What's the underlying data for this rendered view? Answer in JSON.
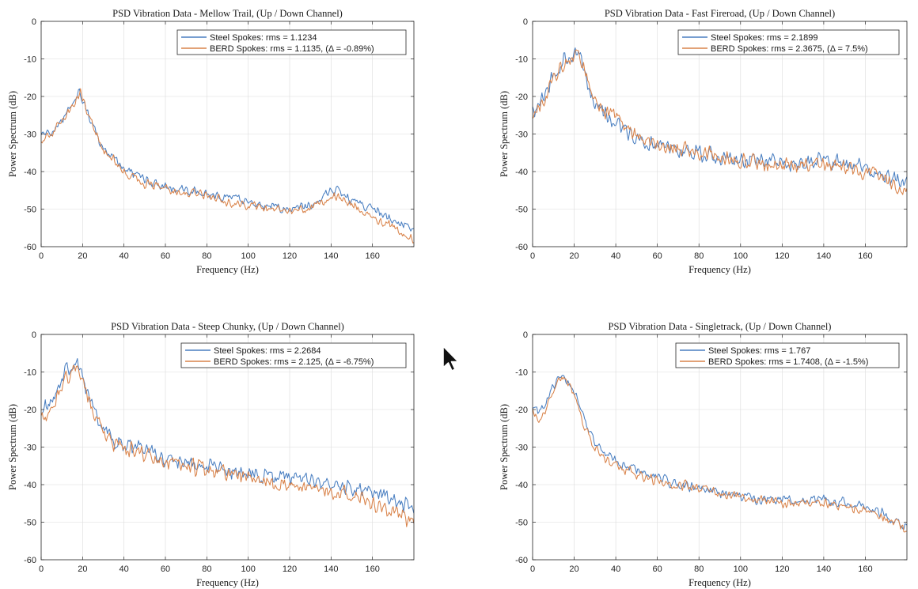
{
  "chart_data": [
    {
      "type": "line",
      "title": "PSD Vibration Data - Mellow Trail, (Up / Down Channel)",
      "xlabel": "Frequency (Hz)",
      "ylabel": "Power Spectrum (dB)",
      "xlim": [
        0,
        180
      ],
      "ylim": [
        -60,
        0
      ],
      "xticks": [
        "0",
        "20",
        "40",
        "60",
        "80",
        "100",
        "120",
        "140",
        "160"
      ],
      "yticks": [
        "0",
        "-10",
        "-20",
        "-30",
        "-40",
        "-50",
        "-60"
      ],
      "grid": true,
      "legend_position": "top-right",
      "series": [
        {
          "name": "Steel Spokes: rms = 1.1234",
          "color": "#4a7fc1",
          "x": [
            0,
            5,
            10,
            15,
            18,
            20,
            25,
            30,
            40,
            50,
            60,
            70,
            80,
            90,
            100,
            110,
            120,
            130,
            135,
            140,
            143,
            150,
            160,
            170,
            179
          ],
          "y": [
            -31,
            -29,
            -26,
            -22,
            -19,
            -21,
            -28,
            -34,
            -39,
            -42,
            -44,
            -45,
            -46,
            -47,
            -48,
            -49,
            -50,
            -49,
            -47,
            -45,
            -45,
            -48,
            -50,
            -53,
            -55
          ]
        },
        {
          "name": "BERD Spokes: rms = 1.1135, (Δ = -0.89%)",
          "color": "#d9834a",
          "x": [
            0,
            5,
            10,
            15,
            19,
            20,
            25,
            30,
            40,
            50,
            60,
            70,
            80,
            90,
            100,
            110,
            120,
            130,
            135,
            140,
            143,
            150,
            160,
            170,
            179
          ],
          "y": [
            -32,
            -30,
            -27,
            -23,
            -18,
            -20,
            -28,
            -34,
            -40,
            -43,
            -44,
            -46,
            -46,
            -48,
            -49,
            -50,
            -51,
            -50,
            -48,
            -47,
            -47,
            -49,
            -52,
            -55,
            -58
          ]
        }
      ]
    },
    {
      "type": "line",
      "title": "PSD Vibration Data - Fast Fireroad, (Up / Down Channel)",
      "xlabel": "Frequency (Hz)",
      "ylabel": "Power Spectrum (dB)",
      "xlim": [
        0,
        180
      ],
      "ylim": [
        -60,
        0
      ],
      "xticks": [
        "0",
        "20",
        "40",
        "60",
        "80",
        "100",
        "120",
        "140",
        "160"
      ],
      "yticks": [
        "0",
        "-10",
        "-20",
        "-30",
        "-40",
        "-50",
        "-60"
      ],
      "grid": true,
      "legend_position": "top-right",
      "series": [
        {
          "name": "Steel Spokes: rms = 2.1899",
          "color": "#4a7fc1",
          "x": [
            0,
            3,
            6,
            10,
            15,
            20,
            22,
            25,
            30,
            40,
            50,
            60,
            70,
            80,
            90,
            100,
            110,
            120,
            130,
            140,
            150,
            160,
            170,
            179
          ],
          "y": [
            -24,
            -22,
            -20,
            -14,
            -10,
            -9,
            -8,
            -14,
            -22,
            -27,
            -31,
            -33,
            -34,
            -35,
            -36,
            -37,
            -37,
            -38,
            -38,
            -37,
            -38,
            -39,
            -41,
            -43
          ]
        },
        {
          "name": "BERD Spokes: rms = 2.3675, (Δ = 7.5%)",
          "color": "#d9834a",
          "x": [
            0,
            3,
            6,
            10,
            15,
            20,
            22,
            25,
            30,
            40,
            50,
            60,
            70,
            80,
            90,
            100,
            110,
            120,
            130,
            140,
            150,
            160,
            170,
            179
          ],
          "y": [
            -26,
            -23,
            -21,
            -15,
            -11,
            -10,
            -8,
            -13,
            -21,
            -26,
            -30,
            -33,
            -34,
            -35,
            -36,
            -37,
            -38,
            -38,
            -38,
            -38,
            -39,
            -40,
            -42,
            -45
          ]
        }
      ]
    },
    {
      "type": "line",
      "title": "PSD Vibration Data - Steep Chunky, (Up / Down Channel)",
      "xlabel": "Frequency (Hz)",
      "ylabel": "Power Spectrum (dB)",
      "xlim": [
        0,
        180
      ],
      "ylim": [
        -60,
        0
      ],
      "xticks": [
        "0",
        "20",
        "40",
        "60",
        "80",
        "100",
        "120",
        "140",
        "160"
      ],
      "yticks": [
        "0",
        "-10",
        "-20",
        "-30",
        "-40",
        "-50",
        "-60"
      ],
      "grid": true,
      "legend_position": "top-right",
      "series": [
        {
          "name": "Steel Spokes: rms = 2.2684",
          "color": "#4a7fc1",
          "x": [
            0,
            3,
            6,
            10,
            14,
            16,
            20,
            25,
            30,
            35,
            40,
            50,
            60,
            70,
            80,
            90,
            100,
            110,
            120,
            130,
            140,
            150,
            160,
            170,
            179
          ],
          "y": [
            -20,
            -19,
            -17,
            -12,
            -8,
            -7,
            -12,
            -20,
            -25,
            -28,
            -29,
            -31,
            -33,
            -34,
            -35,
            -36,
            -37,
            -38,
            -38,
            -39,
            -40,
            -41,
            -42,
            -44,
            -46
          ]
        },
        {
          "name": "BERD Spokes: rms = 2.125, (Δ = -6.75%)",
          "color": "#d9834a",
          "x": [
            0,
            3,
            6,
            10,
            14,
            17,
            20,
            25,
            30,
            35,
            40,
            50,
            60,
            70,
            80,
            90,
            100,
            110,
            120,
            130,
            140,
            150,
            160,
            170,
            179
          ],
          "y": [
            -22,
            -21,
            -18,
            -14,
            -10,
            -8,
            -12,
            -21,
            -26,
            -29,
            -30,
            -32,
            -34,
            -35,
            -36,
            -37,
            -38,
            -39,
            -40,
            -41,
            -42,
            -43,
            -45,
            -47,
            -50
          ]
        }
      ]
    },
    {
      "type": "line",
      "title": "PSD Vibration Data - Singletrack, (Up / Down Channel)",
      "xlabel": "Frequency (Hz)",
      "ylabel": "Power Spectrum (dB)",
      "xlim": [
        0,
        180
      ],
      "ylim": [
        -60,
        0
      ],
      "xticks": [
        "0",
        "20",
        "40",
        "60",
        "80",
        "100",
        "120",
        "140",
        "160"
      ],
      "yticks": [
        "0",
        "-10",
        "-20",
        "-30",
        "-40",
        "-50",
        "-60"
      ],
      "grid": true,
      "legend_position": "top-right",
      "series": [
        {
          "name": "Steel Spokes: rms = 1.767",
          "color": "#4a7fc1",
          "x": [
            0,
            3,
            6,
            10,
            13,
            15,
            20,
            25,
            30,
            35,
            40,
            50,
            60,
            70,
            80,
            90,
            100,
            110,
            120,
            130,
            140,
            150,
            160,
            170,
            179
          ],
          "y": [
            -19,
            -21,
            -19,
            -14,
            -11,
            -11,
            -15,
            -23,
            -29,
            -32,
            -34,
            -36,
            -38,
            -40,
            -41,
            -42,
            -43,
            -44,
            -44,
            -44,
            -44,
            -45,
            -46,
            -48,
            -51
          ]
        },
        {
          "name": "BERD Spokes: rms = 1.7408, (Δ = -1.5%)",
          "color": "#d9834a",
          "x": [
            0,
            3,
            6,
            10,
            13,
            15,
            20,
            25,
            30,
            35,
            40,
            50,
            60,
            70,
            80,
            90,
            100,
            110,
            120,
            130,
            140,
            150,
            160,
            170,
            179
          ],
          "y": [
            -20,
            -22,
            -20,
            -15,
            -12,
            -11,
            -16,
            -24,
            -30,
            -33,
            -35,
            -37,
            -39,
            -40,
            -41,
            -42,
            -43,
            -44,
            -45,
            -45,
            -45,
            -46,
            -47,
            -49,
            -52
          ]
        }
      ]
    }
  ]
}
